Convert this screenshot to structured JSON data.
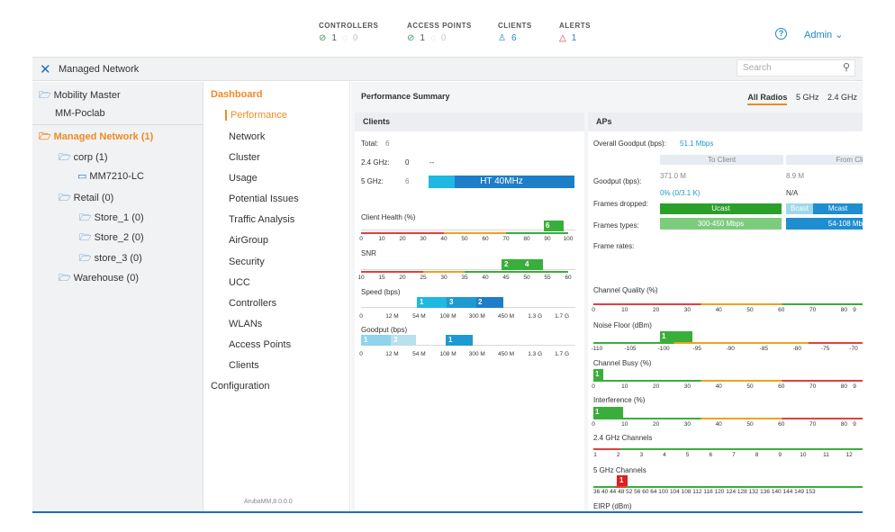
{
  "header": {
    "controllers": {
      "label": "CONTROLLERS",
      "ok": "1",
      "other": "0"
    },
    "access_points": {
      "label": "ACCESS POINTS",
      "ok": "1",
      "other": "0"
    },
    "clients": {
      "label": "CLIENTS",
      "count": "6"
    },
    "alerts": {
      "label": "ALERTS",
      "count": "1"
    },
    "help": "?",
    "user": "Admin"
  },
  "nav": {
    "title": "Managed Network",
    "search_placeholder": "Search"
  },
  "tree": {
    "items": [
      {
        "label": "Mobility Master"
      },
      {
        "label": "MM-Poclab"
      },
      {
        "label": "Managed Network (1)"
      },
      {
        "label": "corp (1)"
      },
      {
        "label": "MM7210-LC"
      },
      {
        "label": "Retail (0)"
      },
      {
        "label": "Store_1 (0)"
      },
      {
        "label": "Store_2 (0)"
      },
      {
        "label": "store_3 (0)"
      },
      {
        "label": "Warehouse (0)"
      }
    ]
  },
  "menu": {
    "header": "Dashboard",
    "items": [
      "Performance",
      "Network",
      "Cluster",
      "Usage",
      "Potential Issues",
      "Traffic Analysis",
      "AirGroup",
      "Security",
      "UCC",
      "Controllers",
      "WLANs",
      "Access Points",
      "Clients"
    ],
    "configuration": "Configuration",
    "version": "ArubaMM,8.0.0.0"
  },
  "summary": {
    "title": "Performance Summary",
    "tabs": [
      "All Radios",
      "5 GHz",
      "2.4 GHz"
    ],
    "clients": {
      "title": "Clients",
      "total_label": "Total:",
      "total": "6",
      "g24_label": "2.4 GHz:",
      "g24": "0",
      "g24_dash": "--",
      "g5_label": "5 GHz:",
      "g5": "6",
      "g5_bar": "HT 40MHz",
      "health": {
        "label": "Client Health (%)",
        "value": "6",
        "ticks": [
          "0",
          "10",
          "20",
          "30",
          "40",
          "50",
          "60",
          "70",
          "80",
          "90",
          "100"
        ]
      },
      "snr": {
        "label": "SNR",
        "values": [
          "2",
          "4"
        ],
        "ticks": [
          "10",
          "15",
          "20",
          "25",
          "30",
          "35",
          "40",
          "45",
          "50",
          "55",
          "60"
        ]
      },
      "speed": {
        "label": "Speed (bps)",
        "values": [
          "1",
          "3",
          "2"
        ],
        "ticks": [
          "0",
          "12 M",
          "54 M",
          "108 M",
          "300 M",
          "450 M",
          "1.3 G",
          "1.7 G"
        ]
      },
      "goodput": {
        "label": "Goodput (bps)",
        "values": [
          "1",
          "3",
          "1"
        ],
        "ticks": [
          "0",
          "12 M",
          "54 M",
          "108 M",
          "300 M",
          "450 M",
          "1.3 G",
          "1.7 G"
        ]
      }
    },
    "aps": {
      "title": "APs",
      "overall_label": "Overall Goodput (bps):",
      "overall": "51.1 Mbps",
      "to_client": "To Client",
      "from_client": "From Clie",
      "goodput_label": "Goodput (bps):",
      "goodput_to": "371.0 M",
      "goodput_from": "8.9 M",
      "pct_to": "0% (0/3.1 K)",
      "pct_from": "N/A",
      "frames_dropped_label": "Frames dropped:",
      "ucast": "Ucast",
      "bcast": "Bcast",
      "mcast": "Mcast",
      "frame_types_label": "Frames types:",
      "ft_to": "300-450 Mbps",
      "ft_from": "54-108 Mb",
      "frame_rates_label": "Frame rates:",
      "channel_quality": {
        "label": "Channel Quality (%)",
        "ticks": [
          "0",
          "10",
          "20",
          "30",
          "40",
          "50",
          "60",
          "70",
          "80",
          "9"
        ]
      },
      "noise_floor": {
        "label": "Noise Floor (dBm)",
        "value": "1",
        "ticks": [
          "-110",
          "-105",
          "-100",
          "-95",
          "-90",
          "-85",
          "-80",
          "-75",
          "-70"
        ]
      },
      "channel_busy": {
        "label": "Channel Busy (%)",
        "value": "1",
        "ticks": [
          "0",
          "10",
          "20",
          "30",
          "40",
          "50",
          "60",
          "70",
          "80",
          "9"
        ]
      },
      "interference": {
        "label": "Interference (%)",
        "value": "1",
        "ticks": [
          "0",
          "10",
          "20",
          "30",
          "40",
          "50",
          "60",
          "70",
          "80",
          "9"
        ]
      },
      "ch24": {
        "label": "2.4 GHz Channels",
        "ticks": [
          "1",
          "2",
          "3",
          "4",
          "5",
          "6",
          "7",
          "8",
          "9",
          "10",
          "11",
          "12"
        ]
      },
      "ch5": {
        "label": "5 GHz Channels",
        "value": "1",
        "ticks": "36 40 44 48 52 56 60 64 100 104 108 112 116 120 124 128 132 136 140 144 149 153"
      },
      "eirp_label": "EIRP (dBm)"
    }
  },
  "colors": {
    "accent": "#f08a24",
    "blue": "#1e6fb8",
    "green": "#3aae3a",
    "cyan": "#1eb8e0"
  }
}
